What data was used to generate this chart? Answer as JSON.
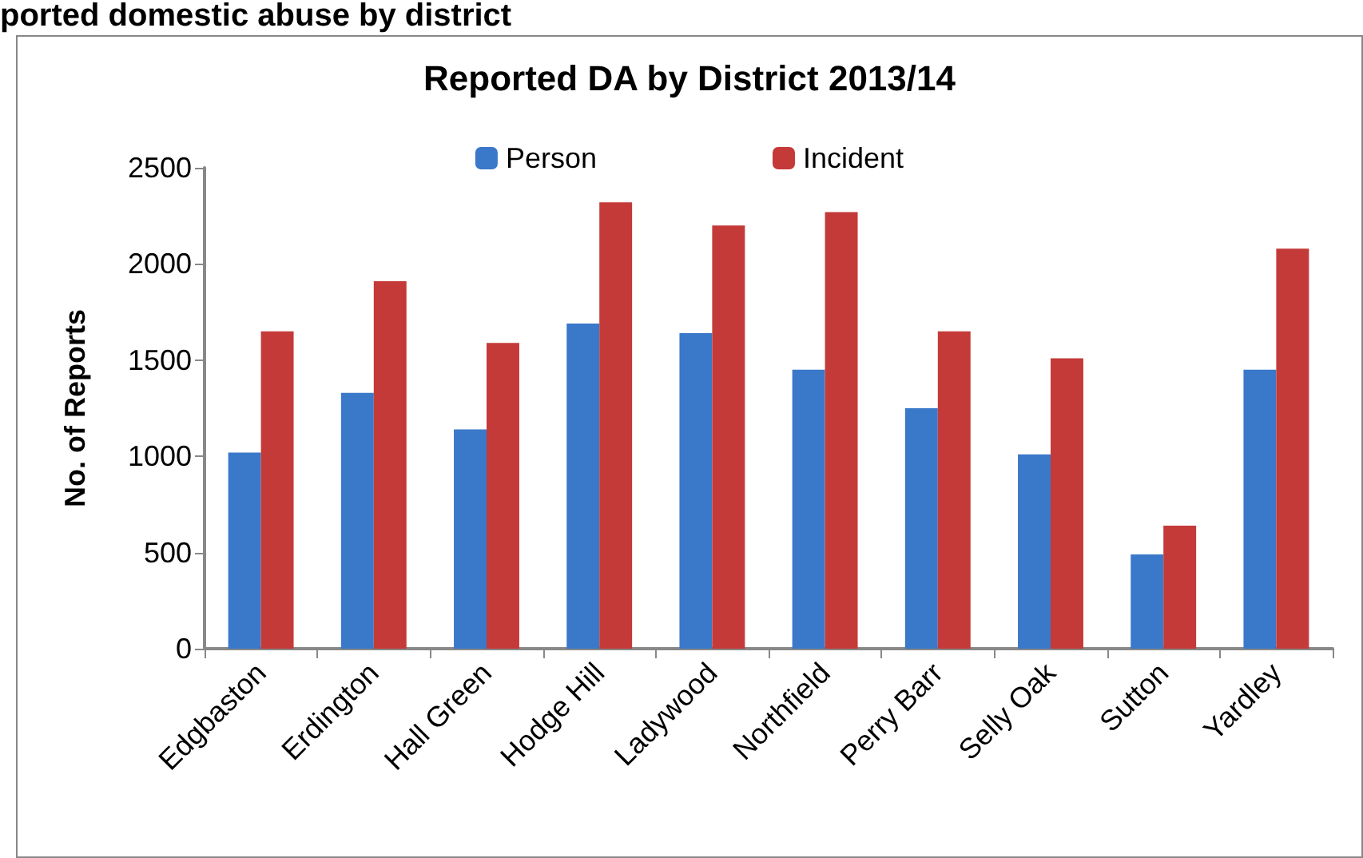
{
  "chart_data": {
    "type": "bar",
    "title": "Reported DA by District 2013/14",
    "ylabel": "No. of Reports",
    "annotations": [
      "ported domestic abuse by district"
    ],
    "categories": [
      "Edgbaston",
      "Erdington",
      "Hall Green",
      "Hodge Hill",
      "Ladywood",
      "Northfield",
      "Perry Barr",
      "Selly Oak",
      "Sutton",
      "Yardley"
    ],
    "series": [
      {
        "name": "Person",
        "color": "#3a78c9",
        "values": [
          1020,
          1330,
          1140,
          1690,
          1640,
          1450,
          1250,
          1010,
          490,
          1450
        ]
      },
      {
        "name": "Incident",
        "color": "#c43a38",
        "values": [
          1650,
          1910,
          1590,
          2320,
          2200,
          2270,
          1650,
          1510,
          640,
          2080
        ]
      }
    ],
    "ylim": [
      0,
      2500
    ],
    "yticks": [
      0,
      500,
      1000,
      1500,
      2000,
      2500
    ],
    "grid": false,
    "legend": "top"
  }
}
